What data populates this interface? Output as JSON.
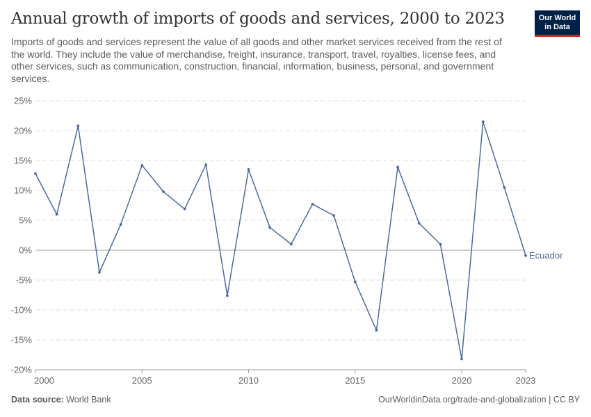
{
  "header": {
    "title": "Annual growth of imports of goods and services, 2000 to 2023",
    "subtitle": "Imports of goods and services represent the value of all goods and other market services received from the rest of the world. They include the value of merchandise, freight, insurance, transport, travel, royalties, license fees, and other services, such as communication, construction, financial, information, business, personal, and government services."
  },
  "logo": {
    "line1": "Our World",
    "line2": "in Data",
    "bg_color": "#002147",
    "accent_color": "#ce261e"
  },
  "footer": {
    "source_label": "Data source:",
    "source_value": "World Bank",
    "right_text": "OurWorldinData.org/trade-and-globalization | CC BY"
  },
  "chart_data": {
    "type": "line",
    "x": [
      2000,
      2001,
      2002,
      2003,
      2004,
      2005,
      2006,
      2007,
      2008,
      2009,
      2010,
      2011,
      2012,
      2013,
      2014,
      2015,
      2016,
      2017,
      2018,
      2019,
      2020,
      2021,
      2022,
      2023
    ],
    "series": [
      {
        "name": "Ecuador",
        "color": "#4c6a9c",
        "values": [
          12.8,
          6.0,
          20.8,
          -3.7,
          4.3,
          14.2,
          9.8,
          6.9,
          14.3,
          -7.6,
          13.5,
          3.8,
          1.0,
          7.7,
          5.8,
          -5.3,
          -13.4,
          13.9,
          4.5,
          1.0,
          -18.2,
          21.5,
          10.5,
          -0.9
        ]
      }
    ],
    "xticks": [
      2000,
      2005,
      2010,
      2015,
      2020,
      2023
    ],
    "yticks": [
      -20,
      -15,
      -10,
      -5,
      0,
      5,
      10,
      15,
      20,
      25
    ],
    "ytick_labels": [
      "-20%",
      "-15%",
      "-10%",
      "-5%",
      "0%",
      "5%",
      "10%",
      "15%",
      "20%",
      "25%"
    ],
    "ylim": [
      -20,
      25
    ],
    "xlim": [
      2000,
      2023
    ],
    "grid": "horizontal-dashed",
    "title": "Annual growth of imports of goods and services, 2000 to 2023"
  }
}
